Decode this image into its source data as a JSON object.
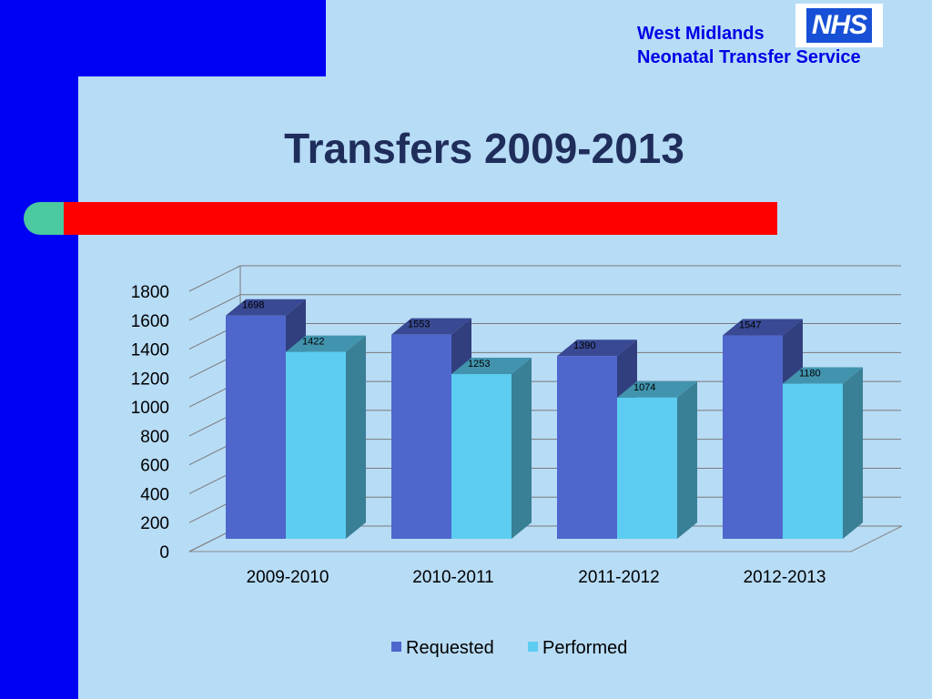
{
  "header": {
    "org_line1": "West Midlands",
    "org_line2": "Neonatal Transfer Service",
    "logo_text": "NHS"
  },
  "slide": {
    "title": "Transfers 2009-2013"
  },
  "colors": {
    "requested": "#4f66cc",
    "performed": "#5ccdf1",
    "accent_bar": "#ff0000",
    "panel": "#0000f5"
  },
  "chart_data": {
    "type": "bar",
    "categories": [
      "2009-2010",
      "2010-2011",
      "2011-2012",
      "2012-2013"
    ],
    "series": [
      {
        "name": "Requested",
        "values": [
          1698,
          1553,
          1390,
          1547
        ]
      },
      {
        "name": "Performed",
        "values": [
          1422,
          1253,
          1074,
          1180
        ]
      }
    ],
    "ylim": [
      0,
      1800
    ],
    "yticks": [
      0,
      200,
      400,
      600,
      800,
      1000,
      1200,
      1400,
      1600,
      1800
    ],
    "grid": true,
    "legend_position": "bottom",
    "style": "3d-clustered-column"
  }
}
